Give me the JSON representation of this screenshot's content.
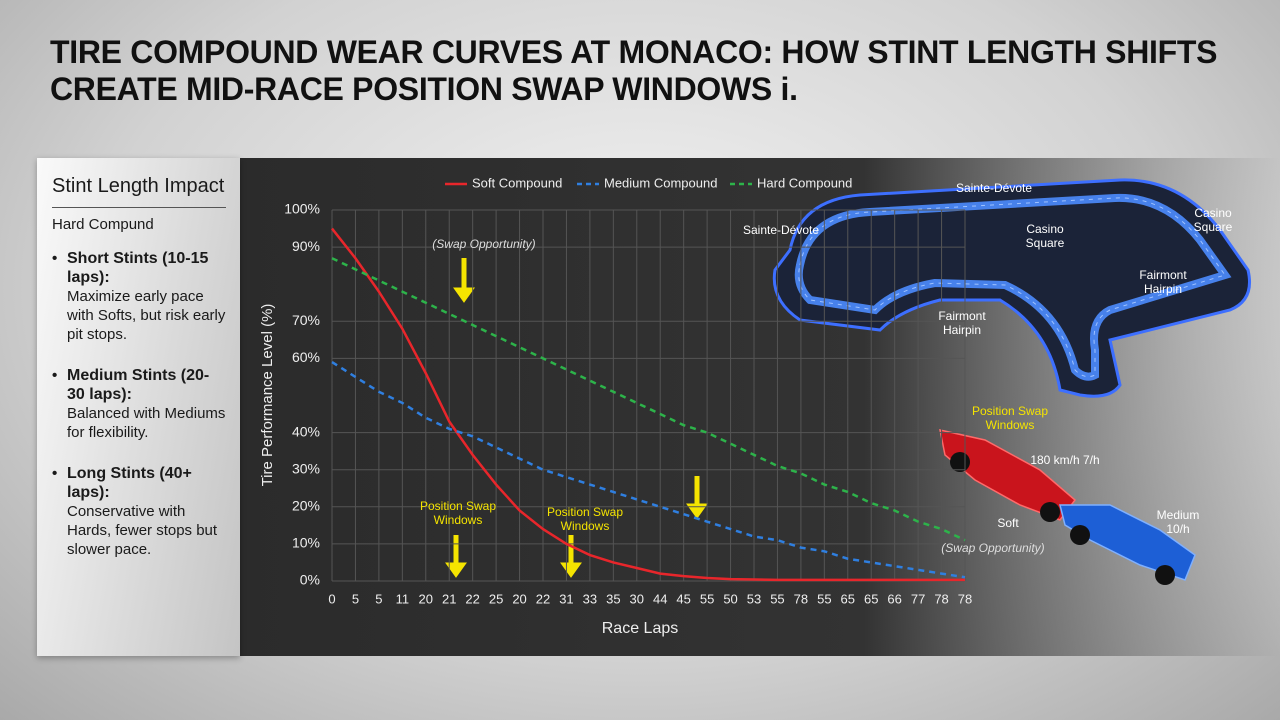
{
  "title": "TIRE COMPOUND WEAR CURVES AT MONACO: HOW STINT LENGTH SHIFTS CREATE MID-RACE POSITION SWAP WINDOWS i.",
  "sidebar": {
    "heading": "Stint Length Impact",
    "subheading": "Hard Compund",
    "items": [
      {
        "label": "Short Stints (10-15 laps):",
        "text": "Maximize early pace with Softs, but risk early pit stops."
      },
      {
        "label": "Medium Stints (20-30 laps):",
        "text": "Balanced with Mediums for flexibility."
      },
      {
        "label": "Long Stints (40+ laps):",
        "text": "Conservative with Hards, fewer stops but slower pace."
      }
    ]
  },
  "illustration": {
    "labels": [
      "Sainte-Dévote",
      "Sainte-Dévote",
      "Casino Square",
      "Casino Square",
      "Fairmont Hairpin",
      "Fairmont Hairpin",
      "Position Swap Windows",
      "180 km/h 7/h",
      "Soft",
      "Medium 10/h"
    ]
  },
  "chart_data": {
    "type": "line",
    "x_label": "Race Laps",
    "y_label": "Tire Performance Level (%)",
    "categories": [
      "0",
      "5",
      "5",
      "11",
      "20",
      "21",
      "22",
      "25",
      "20",
      "22",
      "31",
      "33",
      "35",
      "30",
      "44",
      "45",
      "55",
      "50",
      "53",
      "55",
      "78",
      "55",
      "65",
      "65",
      "66",
      "77",
      "78",
      "78"
    ],
    "series": [
      {
        "name": "Soft Compound",
        "color": "#e8262b",
        "dashed": false,
        "values": [
          95,
          87,
          78,
          68,
          56,
          43,
          34,
          26,
          19,
          14,
          10,
          7,
          5,
          3.5,
          2,
          1.3,
          0.8,
          0.5,
          0.4,
          0.3,
          0.3,
          0.3,
          0.3,
          0.3,
          0.3,
          0.3,
          0.3,
          0.3
        ]
      },
      {
        "name": "Medium Compound",
        "color": "#2f7fe0",
        "dashed": true,
        "values": [
          59,
          55,
          51,
          48,
          44,
          41,
          39,
          36,
          33,
          30,
          28,
          26,
          24,
          22,
          20,
          18,
          16,
          14,
          12,
          11,
          9,
          8,
          6,
          5,
          4,
          3,
          2,
          1
        ]
      },
      {
        "name": "Hard Compound",
        "color": "#2db34a",
        "dashed": true,
        "values": [
          87,
          84,
          81,
          78,
          75,
          72,
          69,
          66,
          63,
          60,
          57,
          54,
          51,
          48,
          45,
          42,
          40,
          37,
          34,
          31,
          29,
          26,
          24,
          21,
          19,
          16,
          14,
          11
        ]
      }
    ],
    "ylim": [
      0,
      100
    ],
    "yticks": [
      {
        "value": 0,
        "label": "0%"
      },
      {
        "value": 10,
        "label": "10%"
      },
      {
        "value": 20,
        "label": "20%"
      },
      {
        "value": 30,
        "label": "30%"
      },
      {
        "value": 40,
        "label": "40%"
      },
      {
        "value": 60,
        "label": "60%"
      },
      {
        "value": 70,
        "label": "70%"
      },
      {
        "value": 90,
        "label": "90%"
      },
      {
        "value": 100,
        "label": "100%"
      }
    ],
    "grid": true,
    "annotations": [
      "(Swap Opportunity)",
      "Position Swap Windows",
      "Position Swap Windows",
      "(Swap Opportunity)"
    ]
  }
}
